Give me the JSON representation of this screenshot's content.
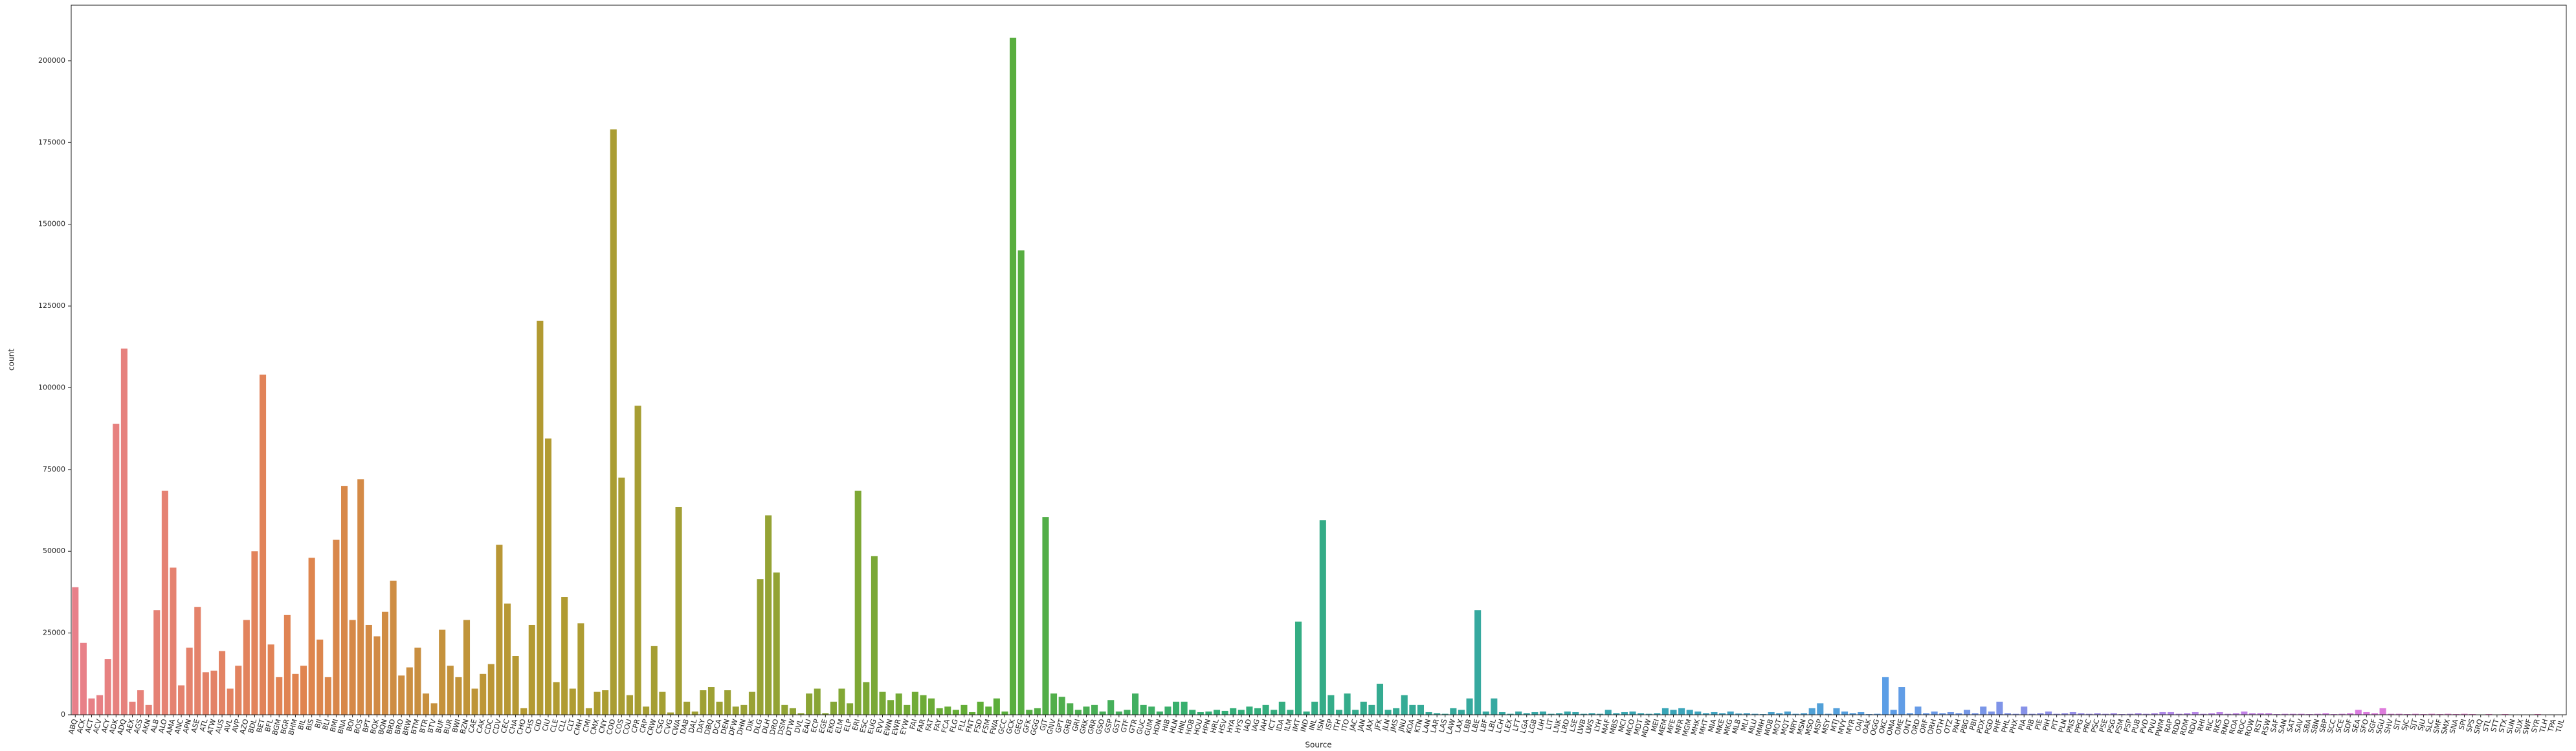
{
  "chart_data": {
    "type": "bar",
    "x_label": "Source",
    "y_label": "count",
    "ylim": [
      0,
      217000
    ],
    "yticks": [
      0,
      25000,
      50000,
      75000,
      100000,
      125000,
      150000,
      175000,
      200000
    ],
    "grid": false,
    "palette": [
      "#e8808a",
      "#e0844f",
      "#b49a31",
      "#99a235",
      "#5fae36",
      "#33af74",
      "#35aa99",
      "#38a6b5",
      "#5b9ee6",
      "#a28bea",
      "#d97de6",
      "#f077b8"
    ],
    "categories": [
      "ABQ",
      "ACK",
      "ACT",
      "ACV",
      "ACY",
      "ADK",
      "ADQ",
      "AEX",
      "AGS",
      "AKN",
      "ALB",
      "ALO",
      "AMA",
      "ANC",
      "APN",
      "ASE",
      "ATL",
      "ATW",
      "AUS",
      "AVL",
      "AVP",
      "AZO",
      "BDL",
      "BET",
      "BFL",
      "BGM",
      "BGR",
      "BHM",
      "BIL",
      "BIS",
      "BJI",
      "BLI",
      "BMI",
      "BNA",
      "BOI",
      "BOS",
      "BPT",
      "BQK",
      "BQN",
      "BRD",
      "BRO",
      "BRW",
      "BTM",
      "BTR",
      "BTV",
      "BUF",
      "BUR",
      "BWI",
      "BZN",
      "CAE",
      "CAK",
      "CDC",
      "CDV",
      "CEC",
      "CHA",
      "CHO",
      "CHS",
      "CID",
      "CIU",
      "CLE",
      "CLL",
      "CLT",
      "CMH",
      "CMI",
      "CMX",
      "CNY",
      "COD",
      "COS",
      "COU",
      "CPR",
      "CRP",
      "CRW",
      "CSG",
      "CVG",
      "CWA",
      "DAB",
      "DAL",
      "DAY",
      "DBQ",
      "DCA",
      "DEN",
      "DFW",
      "DHN",
      "DIK",
      "DLG",
      "DLH",
      "DRO",
      "DSM",
      "DTW",
      "DVL",
      "EAU",
      "ECP",
      "EGE",
      "EKO",
      "ELM",
      "ELP",
      "ERI",
      "ESC",
      "EUG",
      "EVV",
      "EWN",
      "EWR",
      "EYW",
      "FAI",
      "FAR",
      "FAT",
      "FAY",
      "FCA",
      "FLG",
      "FLL",
      "FNT",
      "FSD",
      "FSM",
      "FWA",
      "GCC",
      "GCK",
      "GEG",
      "GFK",
      "GGG",
      "GJT",
      "GNV",
      "GPT",
      "GRB",
      "GRI",
      "GRK",
      "GRR",
      "GSO",
      "GSP",
      "GST",
      "GTF",
      "GTR",
      "GUC",
      "GUM",
      "HDN",
      "HIB",
      "HLN",
      "HNL",
      "HOB",
      "HOU",
      "HPN",
      "HRL",
      "HSV",
      "HYA",
      "HYS",
      "IAD",
      "IAG",
      "IAH",
      "ICT",
      "IDA",
      "ILM",
      "IMT",
      "IND",
      "INL",
      "ISN",
      "ISP",
      "ITH",
      "ITO",
      "JAC",
      "JAN",
      "JAX",
      "JFK",
      "JLN",
      "JMS",
      "JNU",
      "KOA",
      "KTN",
      "LAN",
      "LAR",
      "LAS",
      "LAW",
      "LAX",
      "LBB",
      "LBE",
      "LBF",
      "LBL",
      "LCH",
      "LEX",
      "LFT",
      "LGA",
      "LGB",
      "LIH",
      "LIT",
      "LNK",
      "LRD",
      "LSE",
      "LWB",
      "LWS",
      "LYH",
      "MAF",
      "MBS",
      "MCI",
      "MCO",
      "MDT",
      "MDW",
      "MEI",
      "MEM",
      "MFE",
      "MFR",
      "MGM",
      "MHK",
      "MHT",
      "MIA",
      "MKE",
      "MKG",
      "MLB",
      "MLI",
      "MLU",
      "MMH",
      "MOB",
      "MOT",
      "MQT",
      "MRY",
      "MSN",
      "MSO",
      "MSP",
      "MSY",
      "MTJ",
      "MVY",
      "MYR",
      "OAJ",
      "OAK",
      "OGG",
      "OKC",
      "OMA",
      "OME",
      "ONT",
      "ORD",
      "ORF",
      "ORH",
      "OTH",
      "OTZ",
      "PAH",
      "PBG",
      "PBI",
      "PDX",
      "PGD",
      "PHF",
      "PHL",
      "PHX",
      "PIA",
      "PIB",
      "PIE",
      "PIH",
      "PIT",
      "PLN",
      "PNS",
      "PPG",
      "PRC",
      "PSC",
      "PSE",
      "PSG",
      "PSM",
      "PSP",
      "PUB",
      "PVD",
      "PVU",
      "PWM",
      "RAP",
      "RDD",
      "RDM",
      "RDU",
      "RHI",
      "RIC",
      "RKS",
      "RNO",
      "ROA",
      "ROC",
      "ROW",
      "RST",
      "RSW",
      "SAF",
      "SAN",
      "SAT",
      "SAV",
      "SBA",
      "SBN",
      "SBP",
      "SCC",
      "SCE",
      "SDF",
      "SEA",
      "SFO",
      "SGF",
      "SGU",
      "SHV",
      "SIT",
      "SJC",
      "SJT",
      "SJU",
      "SLC",
      "SMF",
      "SMX",
      "SNA",
      "SPI",
      "SPS",
      "SRQ",
      "STL",
      "STT",
      "STX",
      "SUN",
      "SUX",
      "SWF",
      "SYR",
      "TLH",
      "TPA",
      "TUL"
    ],
    "values": [
      39000,
      22000,
      5000,
      6000,
      17000,
      89000,
      112000,
      4000,
      7500,
      3000,
      32000,
      68500,
      45000,
      9000,
      20500,
      33000,
      13000,
      13500,
      19500,
      8000,
      15000,
      29000,
      50000,
      104000,
      21500,
      11500,
      30500,
      12500,
      15000,
      48000,
      23000,
      11500,
      53500,
      70000,
      29000,
      72000,
      27500,
      24000,
      31500,
      41000,
      12000,
      14500,
      20500,
      6500,
      3500,
      26000,
      15000,
      11500,
      29000,
      8000,
      12500,
      15500,
      52000,
      34000,
      18000,
      2000,
      27500,
      120500,
      84500,
      10000,
      36000,
      8000,
      28000,
      2000,
      7000,
      7500,
      179000,
      72500,
      6000,
      94500,
      2500,
      21000,
      7000,
      700,
      63500,
      4000,
      1000,
      7500,
      8500,
      4000,
      7500,
      2500,
      3000,
      7000,
      41500,
      61000,
      43500,
      3000,
      2000,
      500,
      6500,
      8000,
      500,
      4000,
      8000,
      3500,
      68500,
      10000,
      48500,
      7000,
      4500,
      6500,
      3000,
      7000,
      6000,
      5000,
      2000,
      2500,
      1500,
      3000,
      800,
      4000,
      2500,
      5000,
      1000,
      207000,
      142000,
      1500,
      2000,
      60500,
      6500,
      5500,
      3500,
      1500,
      2500,
      3000,
      1000,
      4500,
      1000,
      1500,
      6500,
      3000,
      2500,
      1000,
      2500,
      4000,
      4000,
      1500,
      800,
      1000,
      1500,
      1200,
      2000,
      1500,
      2500,
      2000,
      3000,
      1500,
      4000,
      1500,
      28500,
      1000,
      4000,
      59500,
      6000,
      1500,
      6500,
      1500,
      4000,
      3000,
      9500,
      1500,
      2000,
      6000,
      3000,
      3000,
      800,
      500,
      300,
      2000,
      1500,
      5000,
      32000,
      1000,
      5000,
      800,
      300,
      1000,
      500,
      800,
      1000,
      300,
      500,
      1000,
      800,
      300,
      500,
      300,
      1500,
      500,
      800,
      1000,
      500,
      300,
      500,
      2000,
      1500,
      2000,
      1500,
      1000,
      500,
      800,
      500,
      1000,
      400,
      500,
      300,
      200,
      800,
      500,
      1000,
      300,
      500,
      2000,
      3500,
      300,
      2000,
      1000,
      500,
      800,
      200,
      300,
      11500,
      1500,
      8500,
      500,
      2500,
      500,
      1000,
      500,
      800,
      500,
      1500,
      500,
      2500,
      1000,
      4000,
      500,
      300,
      2500,
      300,
      500,
      1000,
      300,
      500,
      800,
      500,
      300,
      500,
      300,
      500,
      200,
      300,
      500,
      300,
      500,
      800,
      800,
      300,
      500,
      800,
      300,
      500,
      800,
      300,
      500,
      1000,
      500,
      500,
      500,
      200,
      300,
      300,
      300,
      200,
      300,
      500,
      200,
      300,
      500,
      1500,
      800,
      500,
      2000,
      300,
      300,
      200,
      300,
      200,
      300,
      200,
      300,
      200,
      300,
      200,
      100,
      200,
      100,
      200,
      100,
      100,
      100,
      200,
      100,
      100,
      100
    ]
  }
}
